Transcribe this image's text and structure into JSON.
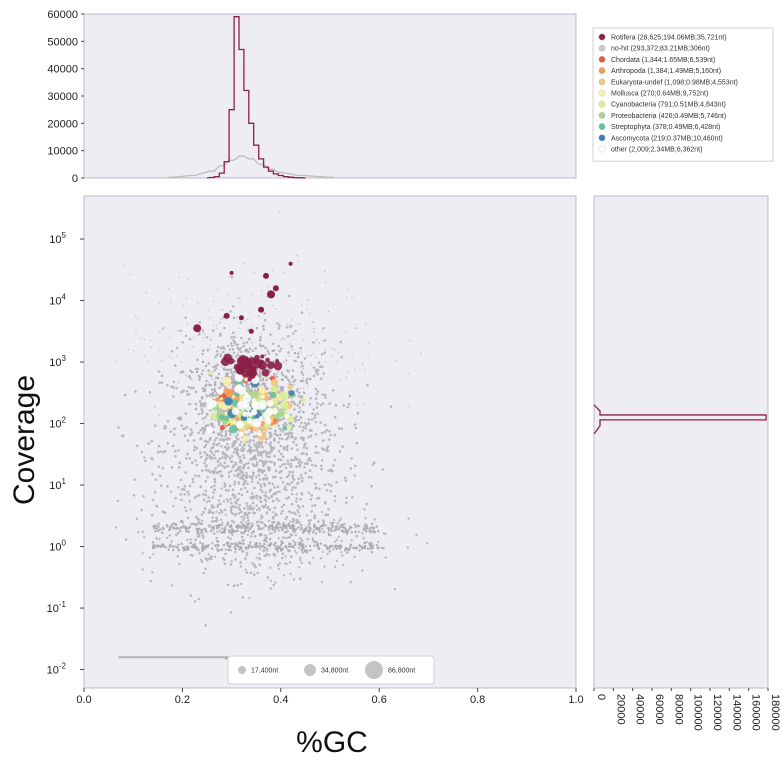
{
  "chart_data": {
    "type": "scatter",
    "subtype": "blobplot",
    "xlabel": "%GC",
    "ylabel": "Coverage",
    "xlim": [
      0.0,
      1.0
    ],
    "ylim_log10": [
      -2.3,
      5.7
    ],
    "y_scale": "log",
    "x_ticks": [
      "0.0",
      "0.2",
      "0.4",
      "0.6",
      "0.8",
      "1.0"
    ],
    "y_ticks": [
      {
        "base": "10",
        "exp": "5"
      },
      {
        "base": "10",
        "exp": "4"
      },
      {
        "base": "10",
        "exp": "3"
      },
      {
        "base": "10",
        "exp": "2"
      },
      {
        "base": "10",
        "exp": "1"
      },
      {
        "base": "10",
        "exp": "0"
      },
      {
        "base": "10",
        "exp": "-1"
      },
      {
        "base": "10",
        "exp": "-2"
      }
    ],
    "grid": false,
    "background": "#eeedf4",
    "top_histogram": {
      "ylim": [
        0,
        60000
      ],
      "y_ticks": [
        "60000",
        "50000",
        "40000",
        "30000",
        "20000",
        "10000",
        "0"
      ],
      "series": [
        {
          "name": "Rotifera",
          "color": "#8c1f46",
          "bins_x": [
            0.26,
            0.27,
            0.28,
            0.29,
            0.3,
            0.31,
            0.32,
            0.33,
            0.34,
            0.35,
            0.36,
            0.37,
            0.38,
            0.39,
            0.4,
            0.41,
            0.42,
            0.43,
            0.44
          ],
          "values": [
            200,
            500,
            1800,
            6000,
            25000,
            59000,
            47000,
            32000,
            20000,
            12000,
            7000,
            4000,
            2500,
            1500,
            900,
            500,
            300,
            150,
            80
          ]
        },
        {
          "name": "no-hit",
          "color": "#bdbdbd",
          "bins_x": [
            0.18,
            0.22,
            0.26,
            0.28,
            0.3,
            0.32,
            0.34,
            0.36,
            0.38,
            0.4,
            0.44,
            0.5
          ],
          "values": [
            300,
            900,
            2500,
            4500,
            6500,
            8000,
            7000,
            5000,
            3200,
            2000,
            900,
            300
          ]
        }
      ]
    },
    "right_histogram": {
      "xlim": [
        0,
        180000
      ],
      "x_ticks": [
        "0",
        "20000",
        "40000",
        "60000",
        "80000",
        "100000",
        "120000",
        "140000",
        "160000",
        "180000"
      ],
      "series": [
        {
          "name": "Rotifera",
          "color": "#8c1f46",
          "peak_log10": 2.1,
          "peak_value": 178000,
          "width_log10": 0.08
        }
      ]
    },
    "legend": {
      "position": "top-right",
      "entries": [
        {
          "label": "Rotifera (28,625;194.06MB;35,721nt)",
          "color": "#8c1f46"
        },
        {
          "label": "no-hit (293,372;83.21MB;306nt)",
          "color": "#c8c8c8"
        },
        {
          "label": "Chordata (1,344;1.65MB;6,539nt)",
          "color": "#e45a3c"
        },
        {
          "label": "Arthropoda (1,384;1.49MB;5,160nt)",
          "color": "#f39c5a"
        },
        {
          "label": "Eukaryota-undef (1,098;0.98MB;4,553nt)",
          "color": "#f6c97a"
        },
        {
          "label": "Mollusca (270;0.64MB;9,752nt)",
          "color": "#fbf0a8"
        },
        {
          "label": "Cyanobacteria (791;0.51MB;4,843nt)",
          "color": "#d9ee9a"
        },
        {
          "label": "Proteobacteria (426;0.49MB;5,746nt)",
          "color": "#a7d68c"
        },
        {
          "label": "Streptophyta (378;0.49MB;6,428nt)",
          "color": "#67bfa0"
        },
        {
          "label": "Ascomycota (219;0.37MB;10,460nt)",
          "color": "#3f7fb3"
        },
        {
          "label": "other (2,009;2.34MB;6,362nt)",
          "color": "#ffffff"
        }
      ]
    },
    "size_legend": {
      "position": "bottom-center",
      "entries": [
        "17,400nt",
        "34,800nt",
        "86,800nt"
      ]
    }
  }
}
